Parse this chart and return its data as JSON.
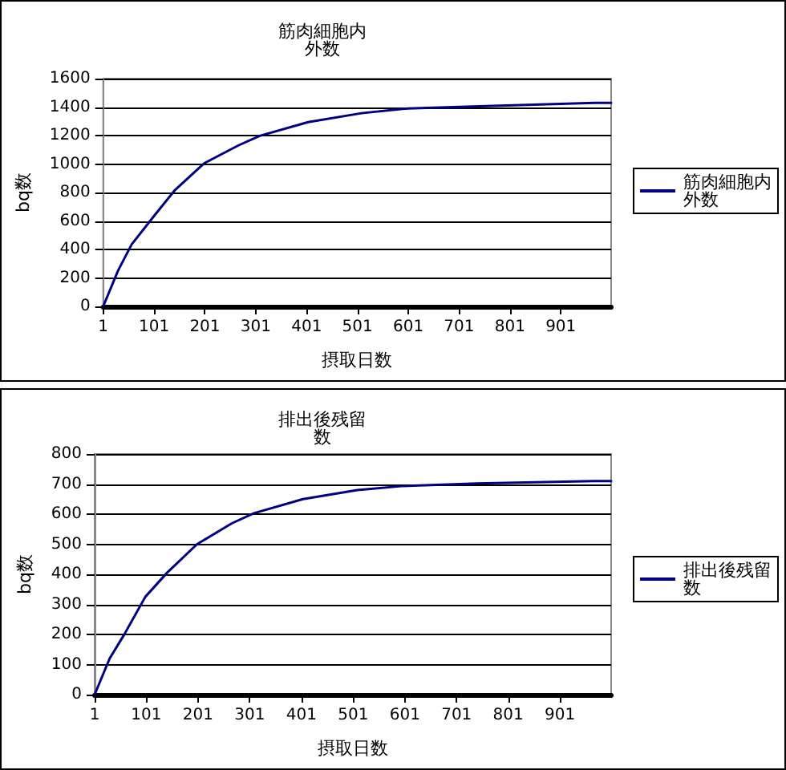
{
  "chart_data": [
    {
      "type": "line",
      "title": "筋肉細胞内外数",
      "xlabel": "摂取日数",
      "ylabel": "bq数",
      "xlim": [
        1,
        1000
      ],
      "xticks": [
        1,
        101,
        201,
        301,
        401,
        501,
        601,
        701,
        801,
        901
      ],
      "ylim": [
        0,
        1600
      ],
      "yticks": [
        0,
        200,
        400,
        600,
        800,
        1000,
        1200,
        1400,
        1600
      ],
      "grid": "y",
      "legend": "right",
      "marker": "none",
      "line_style": "solid",
      "series": [
        {
          "name": "筋肉細胞内外数",
          "color": "#000080",
          "x": [
            1,
            30,
            57,
            101,
            141,
            199,
            267,
            309,
            404,
            509,
            594,
            741,
            967,
            1000
          ],
          "values": [
            0,
            250,
            436,
            635,
            813,
            1004,
            1131,
            1198,
            1294,
            1357,
            1389,
            1405,
            1429,
            1430
          ]
        }
      ]
    },
    {
      "type": "line",
      "title": "排出後残留数",
      "xlabel": "摂取日数",
      "ylabel": "bq数",
      "xlim": [
        1,
        1000
      ],
      "xticks": [
        1,
        101,
        201,
        301,
        401,
        501,
        601,
        701,
        801,
        901
      ],
      "ylim": [
        0,
        800
      ],
      "yticks": [
        0,
        100,
        200,
        300,
        400,
        500,
        600,
        700,
        800
      ],
      "grid": "y",
      "legend": "right",
      "marker": "none",
      "line_style": "solid",
      "series": [
        {
          "name": "排出後残留数",
          "color": "#000080",
          "x": [
            1,
            30,
            58,
            99,
            141,
            199,
            267,
            309,
            404,
            509,
            594,
            741,
            967,
            1000
          ],
          "values": [
            0,
            120,
            199,
            325,
            405,
            500,
            570,
            603,
            650,
            680,
            693,
            702,
            710,
            710
          ]
        }
      ]
    }
  ]
}
